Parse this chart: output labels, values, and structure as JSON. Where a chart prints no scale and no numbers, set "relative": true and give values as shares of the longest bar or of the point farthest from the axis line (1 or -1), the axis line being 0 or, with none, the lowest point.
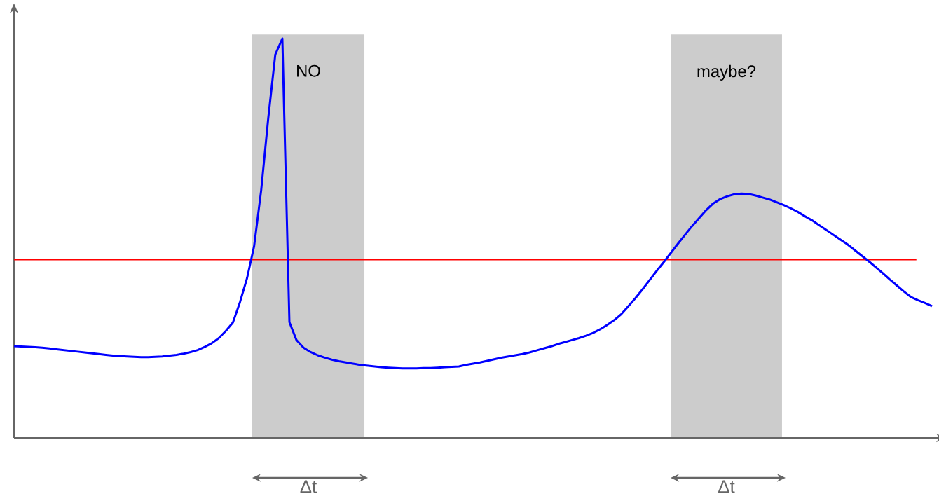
{
  "chart_data": {
    "type": "line",
    "relative": true,
    "categories": [
      null,
      null,
      null,
      null,
      null,
      null,
      null,
      null,
      null,
      null,
      null,
      null,
      null,
      null,
      null,
      null,
      null,
      null,
      null,
      null,
      null,
      null,
      null,
      null,
      null,
      null,
      null,
      null,
      null,
      null,
      null,
      null,
      null,
      null,
      null,
      null,
      null,
      null,
      null,
      null,
      null,
      null,
      null,
      null,
      null,
      null,
      null,
      null,
      null,
      null,
      null,
      null,
      null,
      null,
      null,
      null,
      null,
      null,
      null,
      null,
      null,
      null,
      null,
      null,
      null,
      null,
      null,
      null,
      null,
      null,
      null,
      null,
      null,
      null,
      null,
      null,
      null,
      null,
      null,
      null,
      null,
      null,
      null,
      null,
      null,
      null,
      null,
      null,
      null,
      null,
      null,
      null,
      null,
      null,
      null,
      null,
      null,
      null,
      null,
      null,
      null,
      null,
      null,
      null,
      null,
      null,
      null,
      null,
      null,
      null,
      null,
      null,
      null,
      null,
      null,
      null,
      null,
      null,
      null,
      null,
      null,
      null,
      null,
      null,
      null,
      null,
      null,
      null,
      null,
      null,
      null
    ],
    "series": [
      {
        "color": "#0000ff",
        "values": [
          0.23,
          0.229,
          0.228,
          0.227,
          0.226,
          0.224,
          0.222,
          0.22,
          0.218,
          0.216,
          0.214,
          0.212,
          0.21,
          0.208,
          0.206,
          0.205,
          0.204,
          0.203,
          0.202,
          0.202,
          0.203,
          0.204,
          0.206,
          0.208,
          0.211,
          0.215,
          0.22,
          0.228,
          0.237,
          0.25,
          0.268,
          0.289,
          0.34,
          0.4,
          0.48,
          0.62,
          0.8,
          0.96,
          1,
          0.29,
          0.245,
          0.226,
          0.215,
          0.207,
          0.201,
          0.196,
          0.192,
          0.189,
          0.186,
          0.183,
          0.181,
          0.179,
          0.177,
          0.176,
          0.175,
          0.174,
          0.174,
          0.174,
          0.175,
          0.175,
          0.176,
          0.177,
          0.178,
          0.179,
          0.183,
          0.186,
          0.189,
          0.193,
          0.197,
          0.201,
          0.204,
          0.207,
          0.21,
          0.214,
          0.219,
          0.224,
          0.229,
          0.235,
          0.24,
          0.245,
          0.25,
          0.256,
          0.263,
          0.272,
          0.283,
          0.295,
          0.31,
          0.33,
          0.35,
          0.372,
          0.395,
          0.418,
          0.44,
          0.463,
          0.486,
          0.508,
          0.53,
          0.55,
          0.57,
          0.587,
          0.598,
          0.605,
          0.61,
          0.612,
          0.611,
          0.607,
          0.602,
          0.597,
          0.59,
          0.583,
          0.575,
          0.566,
          0.555,
          0.545,
          0.533,
          0.521,
          0.509,
          0.497,
          0.485,
          0.471,
          0.457,
          0.443,
          0.428,
          0.413,
          0.397,
          0.382,
          0.367,
          0.353,
          0.345,
          0.338,
          0.33
        ]
      }
    ],
    "ref_lines": [
      {
        "axis": "y",
        "value": 0.447,
        "color": "#ff0000"
      }
    ],
    "annotations": [
      "NO",
      "maybe?",
      "Δt",
      "Δt"
    ]
  }
}
